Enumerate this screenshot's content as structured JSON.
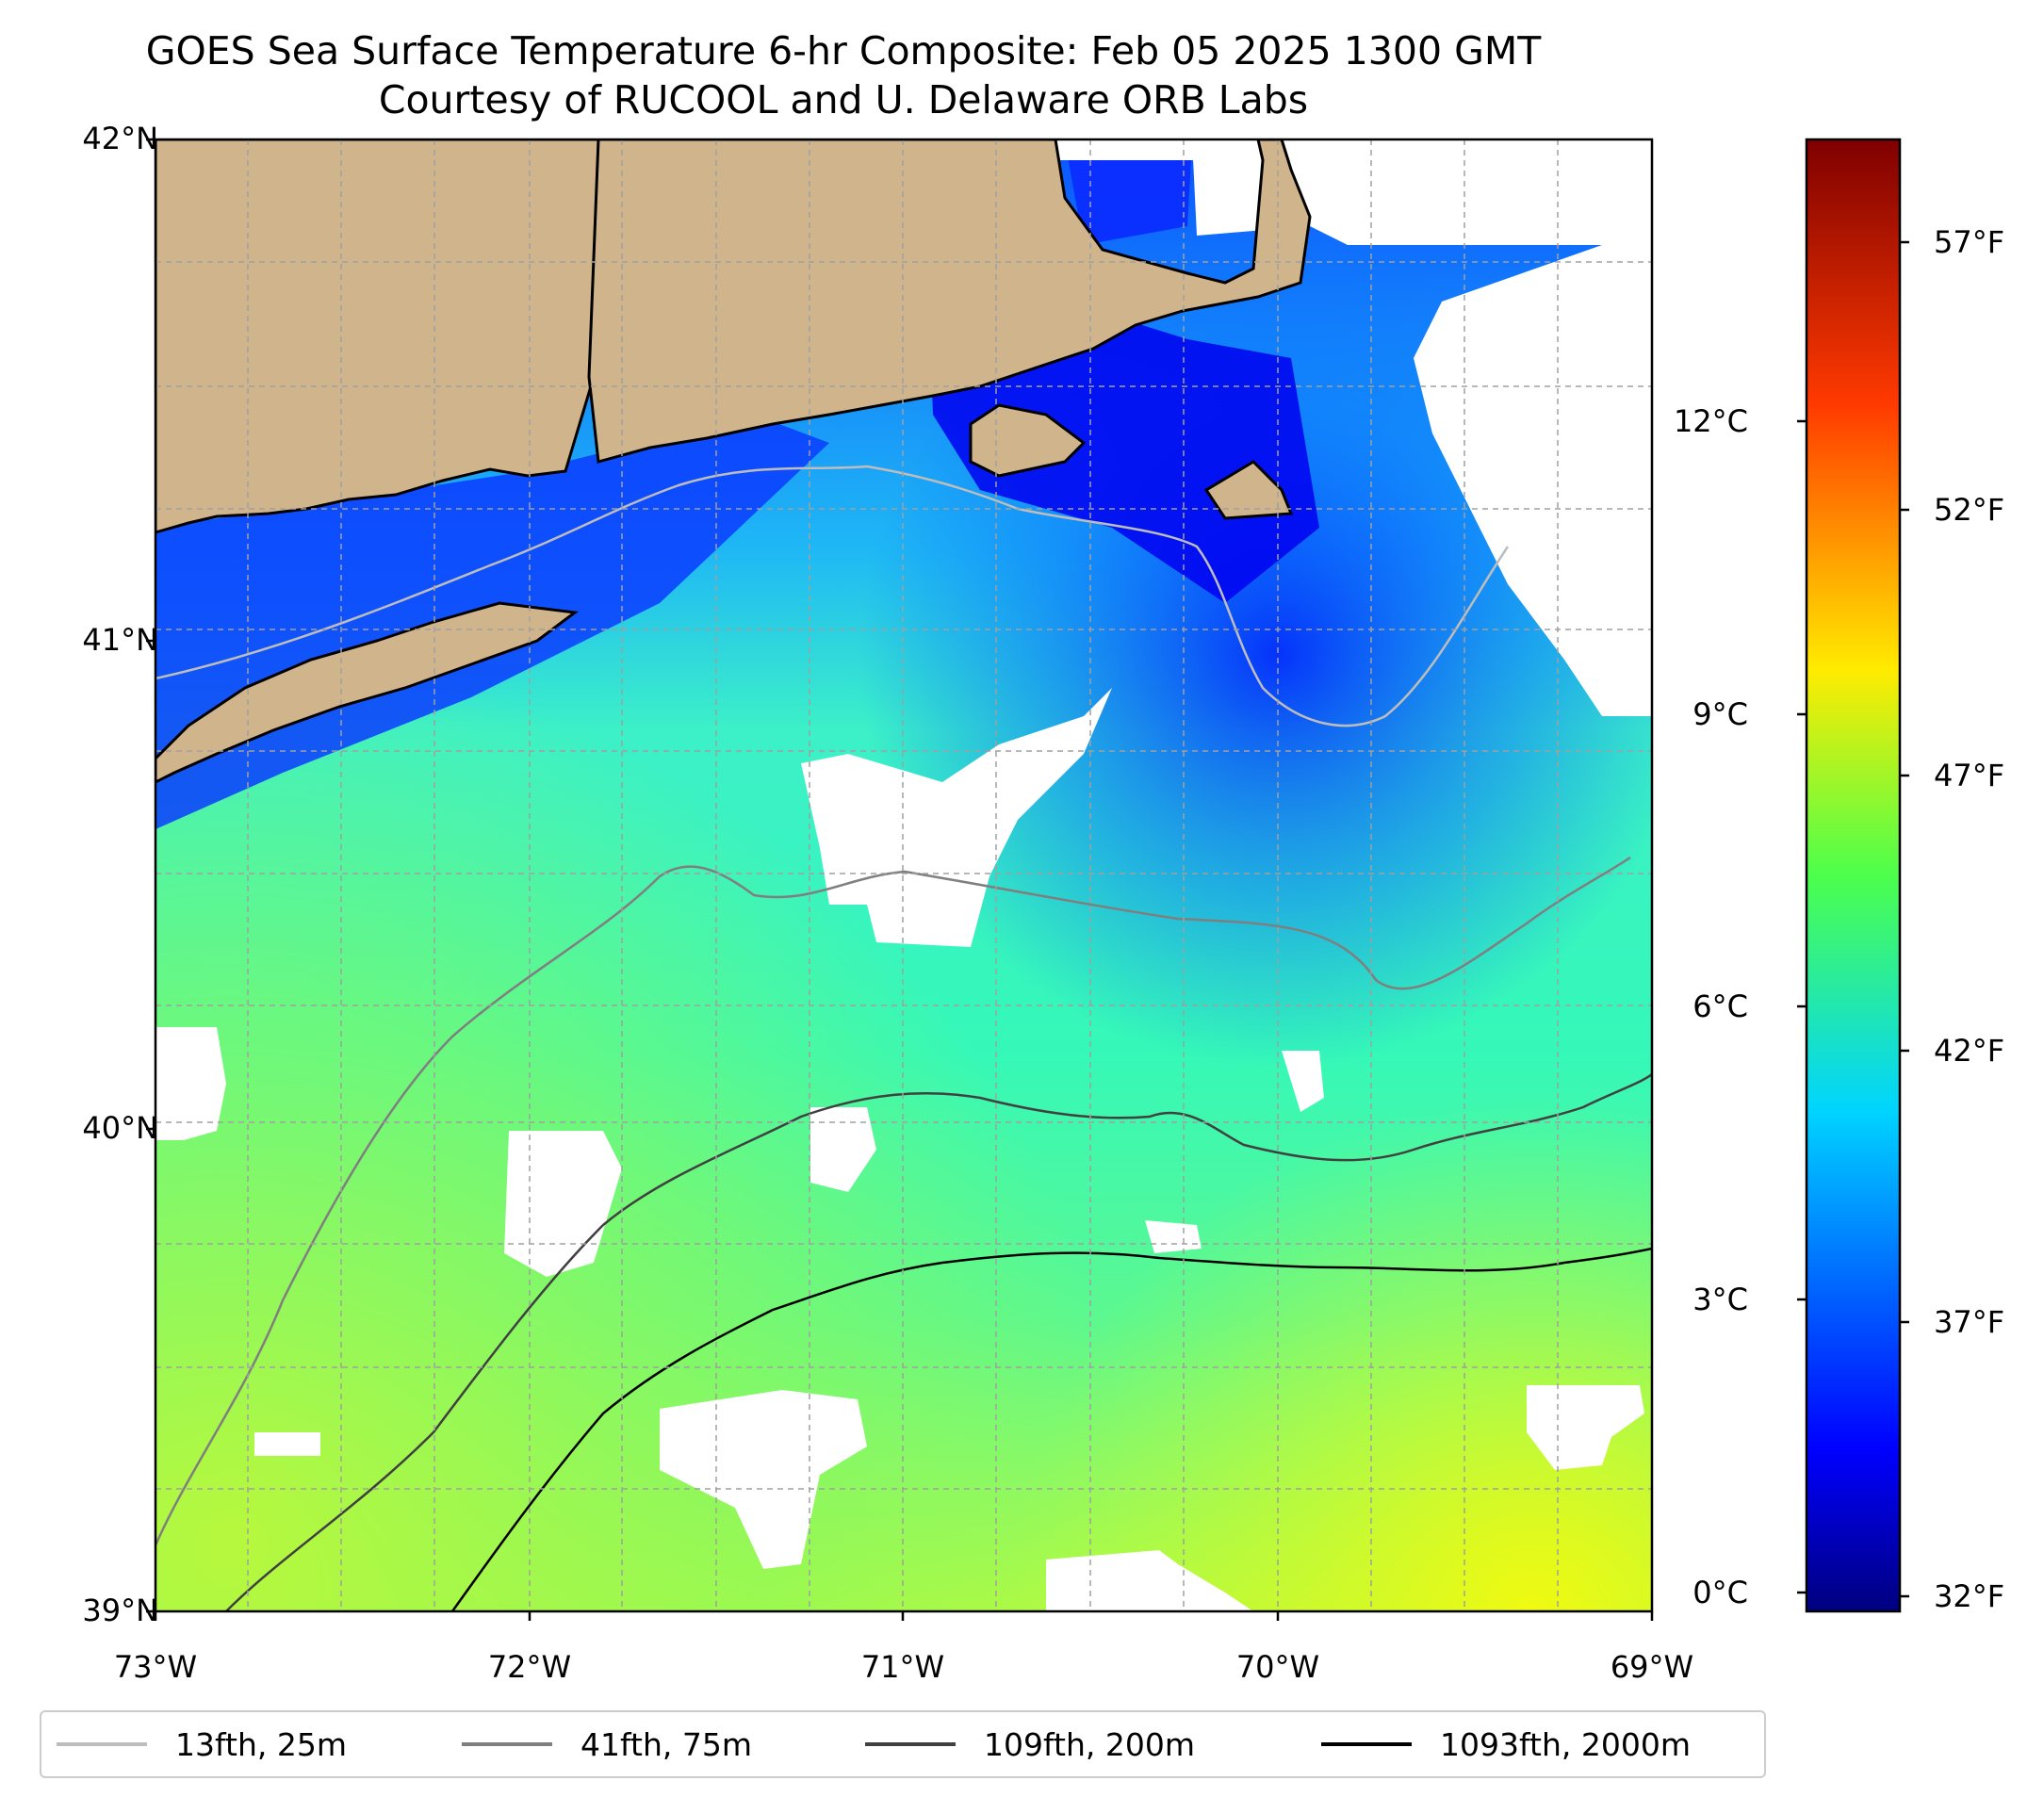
{
  "title": {
    "line1": "GOES Sea Surface Temperature 6-hr Composite: Feb 05 2025 1300 GMT",
    "line2": "Courtesy of RUCOOL and U. Delaware ORB Labs"
  },
  "map": {
    "lat_labels": [
      "42°N",
      "41°N",
      "40°N",
      "39°N"
    ],
    "lon_labels": [
      "73°W",
      "72°W",
      "71°W",
      "70°W",
      "69°W"
    ],
    "lat_range": [
      39,
      42
    ],
    "lon_range": [
      -73,
      -69
    ],
    "grid": true,
    "land_color": "#cfb48c",
    "cloud_color": "#ffffff"
  },
  "colorbar": {
    "celsius_labels": [
      "12°C",
      "9°C",
      "6°C",
      "3°C",
      "0°C"
    ],
    "fahrenheit_labels": [
      "57°F",
      "52°F",
      "47°F",
      "42°F",
      "37°F",
      "32°F"
    ],
    "colormap": "jet"
  },
  "legend": {
    "items": [
      {
        "label": "13fth, 25m",
        "color": "#bdbdbd"
      },
      {
        "label": "41fth, 75m",
        "color": "#7f7f7f"
      },
      {
        "label": "109fth, 200m",
        "color": "#404040"
      },
      {
        "label": "1093fth, 2000m",
        "color": "#000000"
      }
    ]
  }
}
